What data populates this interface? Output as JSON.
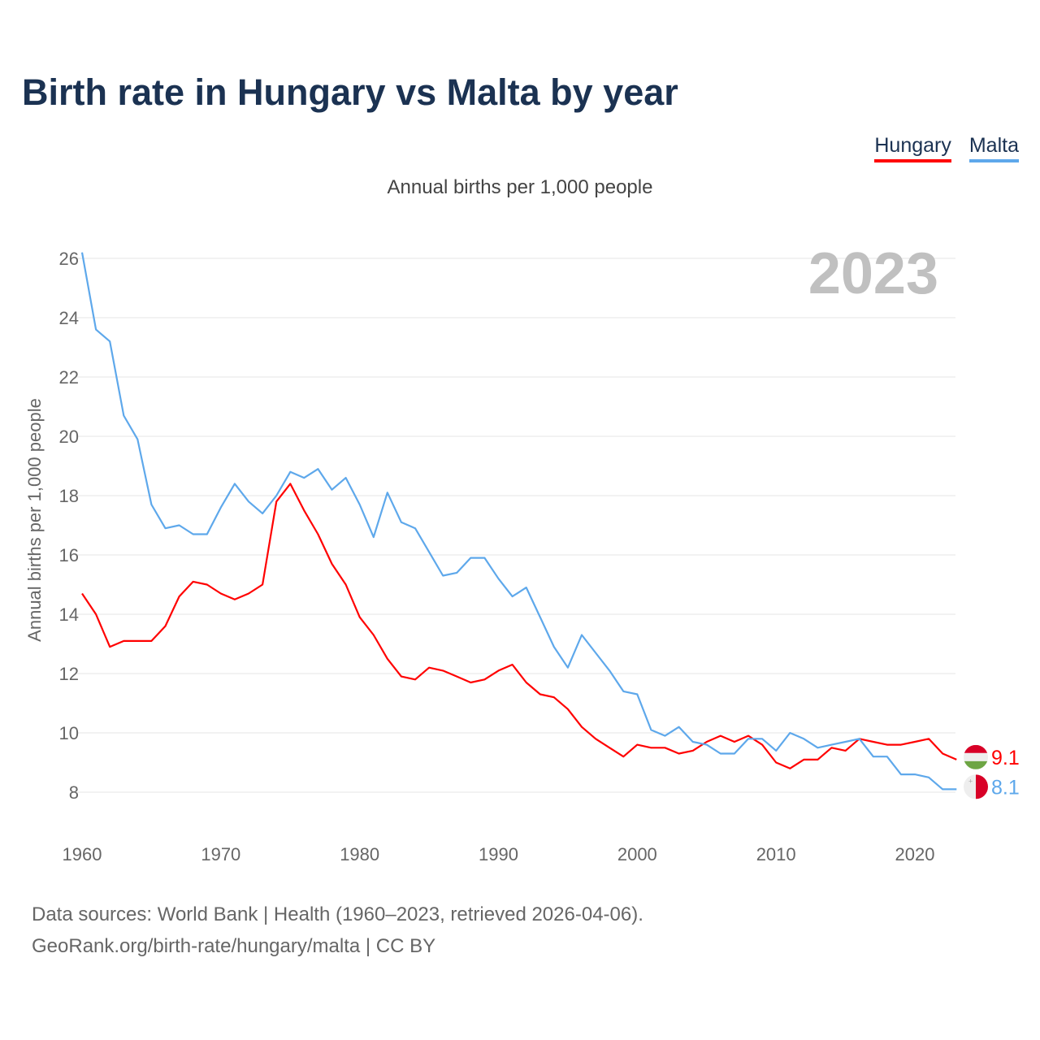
{
  "title": "Birth rate in Hungary vs Malta by year",
  "subtitle": "Annual births per 1,000 people",
  "source_line1": "Data sources: World Bank | Health (1960–2023, retrieved 2026-04-06).",
  "source_line2": "GeoRank.org/birth-rate/hungary/malta | CC BY",
  "chart_data": {
    "type": "line",
    "title": "Birth rate in Hungary vs Malta by year",
    "ylabel": "Annual births per 1,000 people",
    "xlabel": "",
    "year_label": "2023",
    "xlim": [
      1960,
      2023
    ],
    "ylim": [
      7,
      26.5
    ],
    "xticks": [
      1960,
      1970,
      1980,
      1990,
      2000,
      2010,
      2020
    ],
    "yticks": [
      8,
      10,
      12,
      14,
      16,
      18,
      20,
      22,
      24,
      26
    ],
    "grid": true,
    "legend_position": "top-right",
    "x_start": 1960,
    "series": [
      {
        "name": "Hungary",
        "color": "#ff0000",
        "end_label": "9.1",
        "values": [
          14.7,
          14.0,
          12.9,
          13.1,
          13.1,
          13.1,
          13.6,
          14.6,
          15.1,
          15.0,
          14.7,
          14.5,
          14.7,
          15.0,
          17.8,
          18.4,
          17.5,
          16.7,
          15.7,
          15.0,
          13.9,
          13.3,
          12.5,
          11.9,
          11.8,
          12.2,
          12.1,
          11.9,
          11.7,
          11.8,
          12.1,
          12.3,
          11.7,
          11.3,
          11.2,
          10.8,
          10.2,
          9.8,
          9.5,
          9.2,
          9.6,
          9.5,
          9.5,
          9.3,
          9.4,
          9.7,
          9.9,
          9.7,
          9.9,
          9.6,
          9.0,
          8.8,
          9.1,
          9.1,
          9.5,
          9.4,
          9.8,
          9.7,
          9.6,
          9.6,
          9.7,
          9.8,
          9.3,
          9.1
        ]
      },
      {
        "name": "Malta",
        "color": "#5ea8eb",
        "end_label": "8.1",
        "values": [
          26.2,
          23.6,
          23.2,
          20.7,
          19.9,
          17.7,
          16.9,
          17.0,
          16.7,
          16.7,
          17.6,
          18.4,
          17.8,
          17.4,
          18.0,
          18.8,
          18.6,
          18.9,
          18.2,
          18.6,
          17.7,
          16.6,
          18.1,
          17.1,
          16.9,
          16.1,
          15.3,
          15.4,
          15.9,
          15.9,
          15.2,
          14.6,
          14.9,
          13.9,
          12.9,
          12.2,
          13.3,
          12.7,
          12.1,
          11.4,
          11.3,
          10.1,
          9.9,
          10.2,
          9.7,
          9.6,
          9.3,
          9.3,
          9.8,
          9.8,
          9.4,
          10.0,
          9.8,
          9.5,
          9.6,
          9.7,
          9.8,
          9.2,
          9.2,
          8.6,
          8.6,
          8.5,
          8.1,
          8.1
        ]
      }
    ]
  }
}
